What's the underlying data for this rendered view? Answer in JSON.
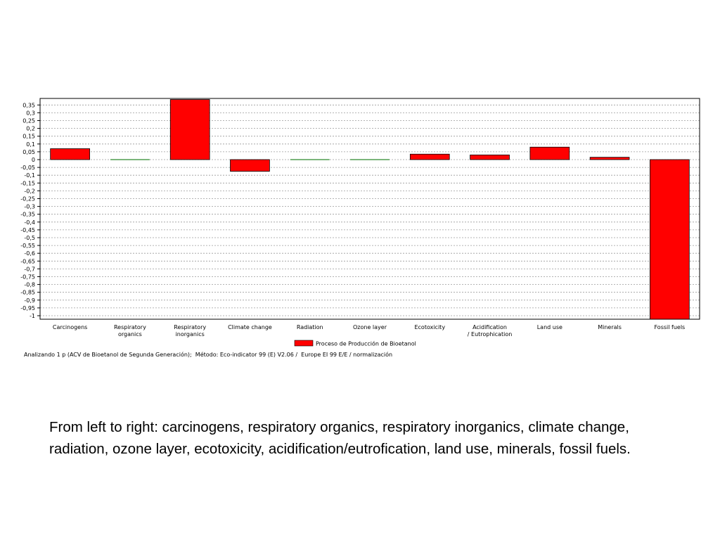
{
  "chart_data": {
    "type": "bar",
    "categories": [
      "Carcinogens",
      "Respiratory\norganics",
      "Respiratory\ninorganics",
      "Climate change",
      "Radiation",
      "Ozone layer",
      "Ecotoxicity",
      "Acidification\n/ Eutrophication",
      "Land use",
      "Minerals",
      "Fossil fuels"
    ],
    "series": [
      {
        "name": "Proceso de Producción de Bioetanol",
        "color": "#ff0000",
        "values": [
          0.07,
          0.0,
          0.385,
          -0.075,
          0.0,
          0.0,
          0.035,
          0.03,
          0.08,
          0.015,
          -1.03
        ]
      }
    ],
    "ylim": [
      -1,
      0.38
    ],
    "yticks": [
      "0,35",
      "0,3",
      "0,25",
      "0,2",
      "0,15",
      "0,1",
      "0,05",
      "0",
      "-0,05",
      "-0,1",
      "-0,15",
      "-0,2",
      "-0,25",
      "-0,3",
      "-0,35",
      "-0,4",
      "-0,45",
      "-0,5",
      "-0,55",
      "-0,6",
      "-0,65",
      "-0,7",
      "-0,75",
      "-0,8",
      "-0,85",
      "-0,9",
      "-0,95",
      "-1"
    ],
    "grid": true,
    "legend_position": "bottom-center",
    "footnote": "Analizando 1 p (ACV de Bioetanol de Segunda Generación);  Método: Eco-indicator 99 (E) V2.06 /  Europe EI 99 E/E / normalización"
  },
  "caption": "From left to right: carcinogens, respiratory organics, respiratory inorganics, climate change, radiation, ozone layer, ecotoxicity, acidification/eutrofication, land use, minerals, fossil fuels."
}
